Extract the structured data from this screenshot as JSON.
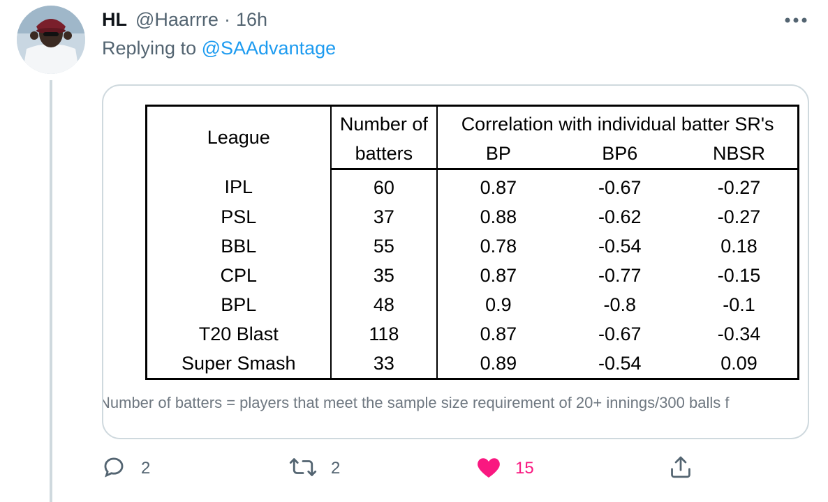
{
  "tweet": {
    "author_name": "HL",
    "handle": "@Haarrre",
    "separator": "·",
    "time": "16h",
    "replying_prefix": "Replying to",
    "replying_to": "@SAAdvantage"
  },
  "table": {
    "col_league": "League",
    "col_batters_line1": "Number of",
    "col_batters_line2": "batters",
    "col_group": "Correlation with individual batter SR's",
    "col_bp": "BP",
    "col_bp6": "BP6",
    "col_nbsr": "NBSR",
    "rows": [
      {
        "league": "IPL",
        "batters": "60",
        "bp": "0.87",
        "bp6": "-0.67",
        "nbsr": "-0.27"
      },
      {
        "league": "PSL",
        "batters": "37",
        "bp": "0.88",
        "bp6": "-0.62",
        "nbsr": "-0.27"
      },
      {
        "league": "BBL",
        "batters": "55",
        "bp": "0.78",
        "bp6": "-0.54",
        "nbsr": "0.18"
      },
      {
        "league": "CPL",
        "batters": "35",
        "bp": "0.87",
        "bp6": "-0.77",
        "nbsr": "-0.15"
      },
      {
        "league": "BPL",
        "batters": "48",
        "bp": "0.9",
        "bp6": "-0.8",
        "nbsr": "-0.1"
      },
      {
        "league": "T20 Blast",
        "batters": "118",
        "bp": "0.87",
        "bp6": "-0.67",
        "nbsr": "-0.34"
      },
      {
        "league": "Super Smash",
        "batters": "33",
        "bp": "0.89",
        "bp6": "-0.54",
        "nbsr": "0.09"
      }
    ],
    "caption": "Number of batters = players that meet the sample size requirement of 20+ innings/300 balls f"
  },
  "actions": {
    "replies": "2",
    "retweets": "2",
    "likes": "15"
  },
  "colors": {
    "accent": "#1d9bf0",
    "like": "#f91880",
    "secondary_text": "#536471",
    "border": "#cfd9de"
  },
  "icons": [
    "more-icon",
    "reply-icon",
    "retweet-icon",
    "like-icon",
    "share-icon"
  ]
}
